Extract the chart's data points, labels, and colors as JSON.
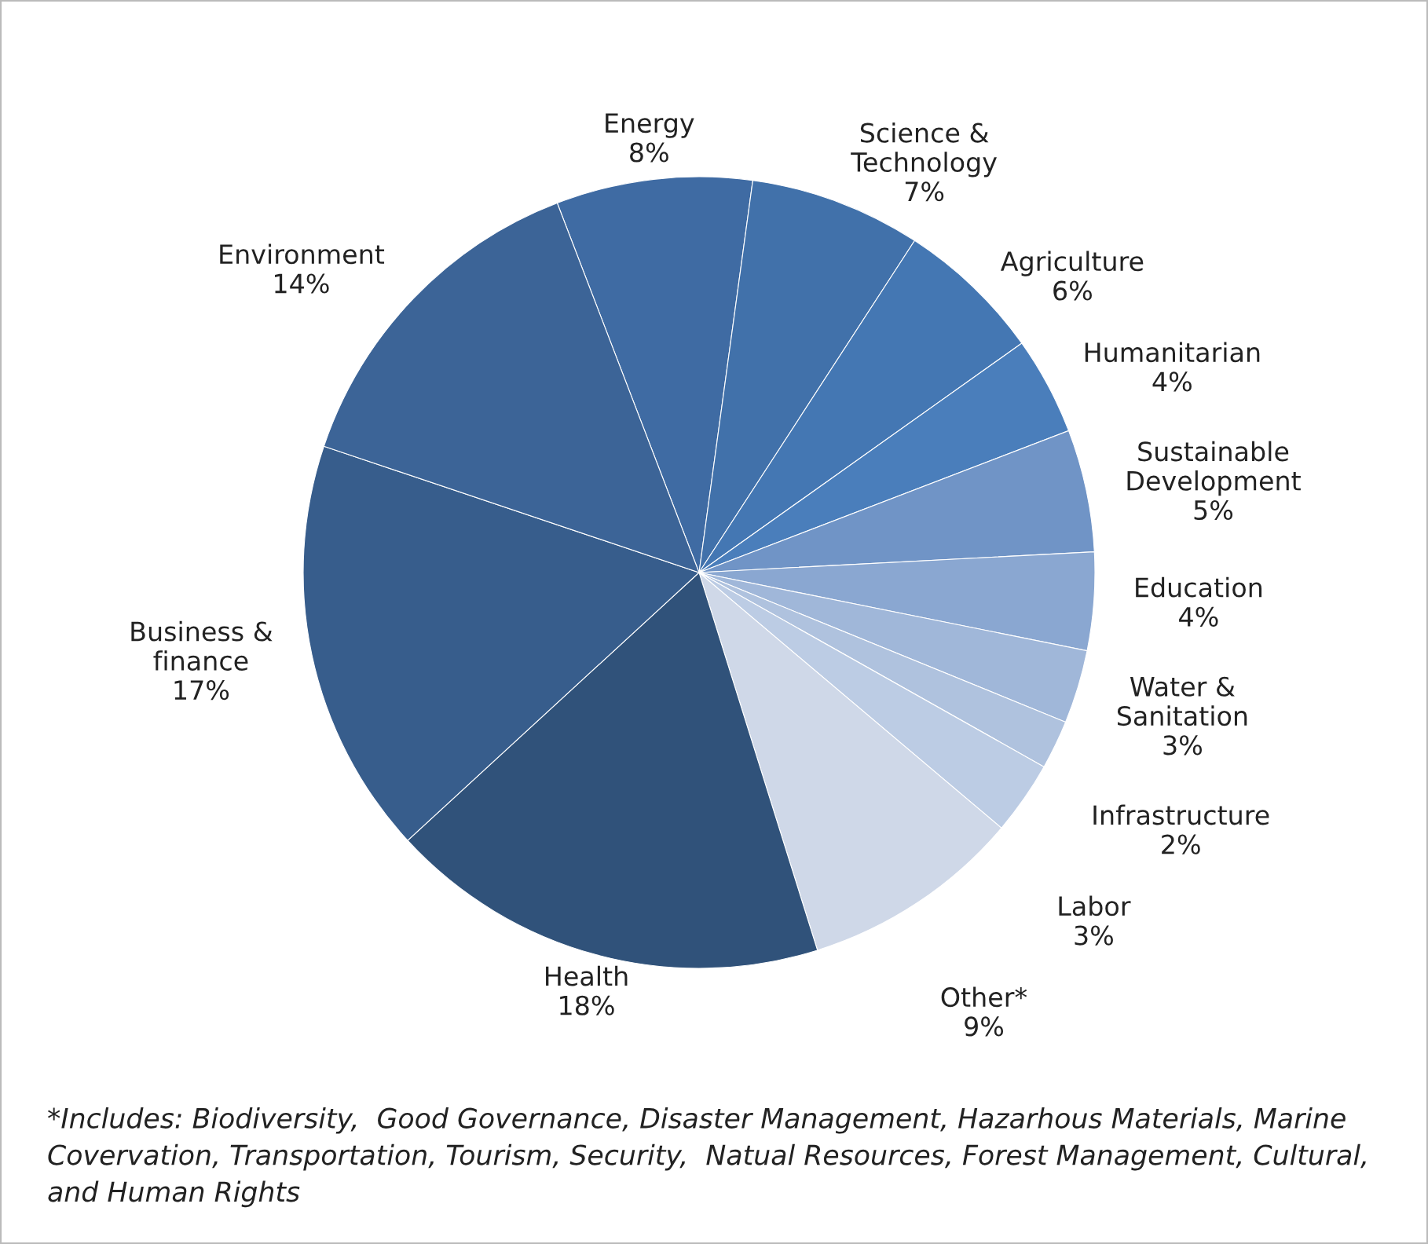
{
  "chart_data": {
    "type": "pie",
    "categories": [
      "Energy",
      "Science &\nTechnology",
      "Agriculture",
      "Humanitarian",
      "Sustainable\nDevelopment",
      "Education",
      "Water &\nSanitation",
      "Infrastructure",
      "Labor",
      "Other*",
      "Health",
      "Business &\nfinance",
      "Environment"
    ],
    "values": [
      8,
      7,
      6,
      4,
      5,
      4,
      3,
      2,
      3,
      9,
      18,
      17,
      14
    ],
    "value_labels": [
      "8%",
      "7%",
      "6%",
      "4%",
      "5%",
      "4%",
      "3%",
      "2%",
      "3%",
      "9%",
      "18%",
      "17%",
      "14%"
    ],
    "colors": [
      "#3f6ba3",
      "#4171aa",
      "#4477b3",
      "#4a7ebb",
      "#7094c6",
      "#8aa7d1",
      "#a0b7d9",
      "#afc2de",
      "#bccce4",
      "#cfd8e8",
      "#30527a",
      "#375d8c",
      "#3c6497"
    ],
    "annotations": [
      "*Includes: Biodiversity,  Good Governance, Disaster Management, Hazarhous Materials, Marine Covervation, Transportation, Tourism, Security,  Natual Resources, Forest Management, Cultural, and Human Rights"
    ]
  }
}
